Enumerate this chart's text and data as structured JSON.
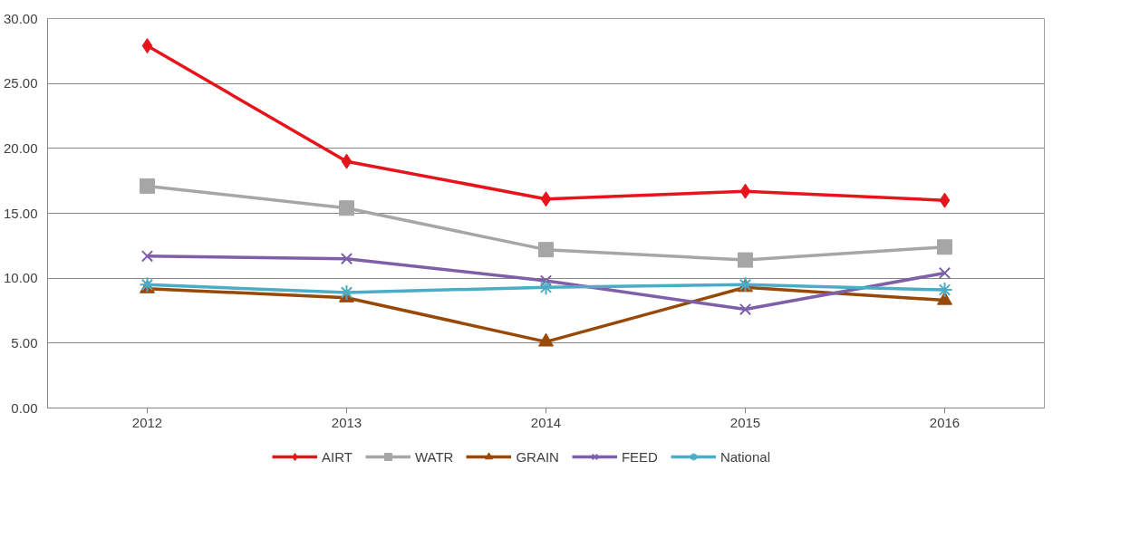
{
  "chart_data": {
    "type": "line",
    "categories": [
      "2012",
      "2013",
      "2014",
      "2015",
      "2016"
    ],
    "ylim": [
      0,
      30
    ],
    "yticks": [
      {
        "value": 0,
        "label": "0.00"
      },
      {
        "value": 5,
        "label": "5.00"
      },
      {
        "value": 10,
        "label": "10.00"
      },
      {
        "value": 15,
        "label": "15.00"
      },
      {
        "value": 20,
        "label": "20.00"
      },
      {
        "value": 25,
        "label": "25.00"
      },
      {
        "value": 30,
        "label": "30.00"
      }
    ],
    "grid": "y",
    "legend": "bottom",
    "line_style": "solid",
    "series": [
      {
        "name": "AIRT",
        "color": "#e8141b",
        "marker": "diamond",
        "values": [
          27.9,
          19.0,
          16.1,
          16.7,
          16.0
        ]
      },
      {
        "name": "WATR",
        "color": "#a6a6a6",
        "marker": "square",
        "values": [
          17.1,
          15.4,
          12.2,
          11.4,
          12.4
        ]
      },
      {
        "name": "GRAIN",
        "color": "#984807",
        "marker": "triangle",
        "values": [
          9.2,
          8.5,
          5.1,
          9.3,
          8.3
        ]
      },
      {
        "name": "FEED",
        "color": "#7f5fa8",
        "marker": "cross",
        "values": [
          11.7,
          11.5,
          9.8,
          7.6,
          10.4
        ]
      },
      {
        "name": "National",
        "color": "#4bacc6",
        "marker": "cross",
        "values": [
          9.5,
          8.9,
          9.3,
          9.5,
          9.1
        ]
      }
    ]
  }
}
